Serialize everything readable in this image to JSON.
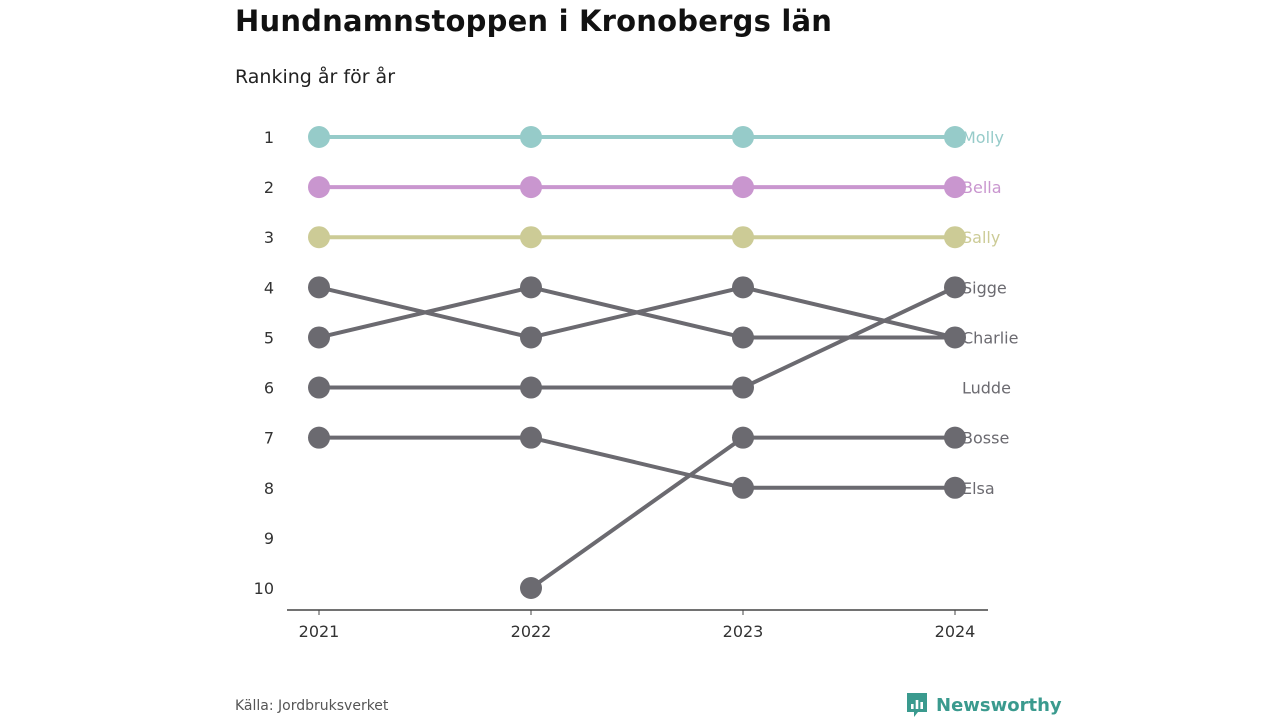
{
  "chart_data": {
    "type": "line",
    "title": "Hundnamnstoppen i Kronobergs län",
    "subtitle": "Ranking år för år",
    "x": [
      "2021",
      "2022",
      "2023",
      "2024"
    ],
    "y_ticks": [
      "1",
      "2",
      "3",
      "4",
      "5",
      "6",
      "7",
      "8",
      "9",
      "10"
    ],
    "ylim": [
      1,
      10
    ],
    "y_inverted": true,
    "series": [
      {
        "name": "Molly",
        "values": [
          1,
          1,
          1,
          1
        ],
        "color": "#96cbc9",
        "dot_last": true
      },
      {
        "name": "Bella",
        "values": [
          2,
          2,
          2,
          2
        ],
        "color": "#c996cf",
        "dot_last": true
      },
      {
        "name": "Sally",
        "values": [
          3,
          3,
          3,
          3
        ],
        "color": "#cccb96",
        "dot_last": true
      },
      {
        "name": "Sigge",
        "values": [
          6,
          6,
          6,
          4
        ],
        "color": "#6b6a70",
        "dot_last": true
      },
      {
        "name": "Charlie",
        "values": [
          4,
          5,
          4,
          5
        ],
        "color": "#6b6a70",
        "dot_last": true
      },
      {
        "name": "Ludde",
        "values": [
          5,
          4,
          5,
          5
        ],
        "color": "#6b6a70",
        "dot_last": false
      },
      {
        "name": "Bosse",
        "values": [
          null,
          10,
          7,
          7
        ],
        "color": "#6b6a70",
        "dot_last": true
      },
      {
        "name": "Elsa",
        "values": [
          7,
          7,
          8,
          8
        ],
        "color": "#6b6a70",
        "dot_last": true
      }
    ]
  },
  "footer": {
    "source": "Källa: Jordbruksverket",
    "brand": "Newsworthy",
    "brand_color": "#3a9a8e"
  }
}
